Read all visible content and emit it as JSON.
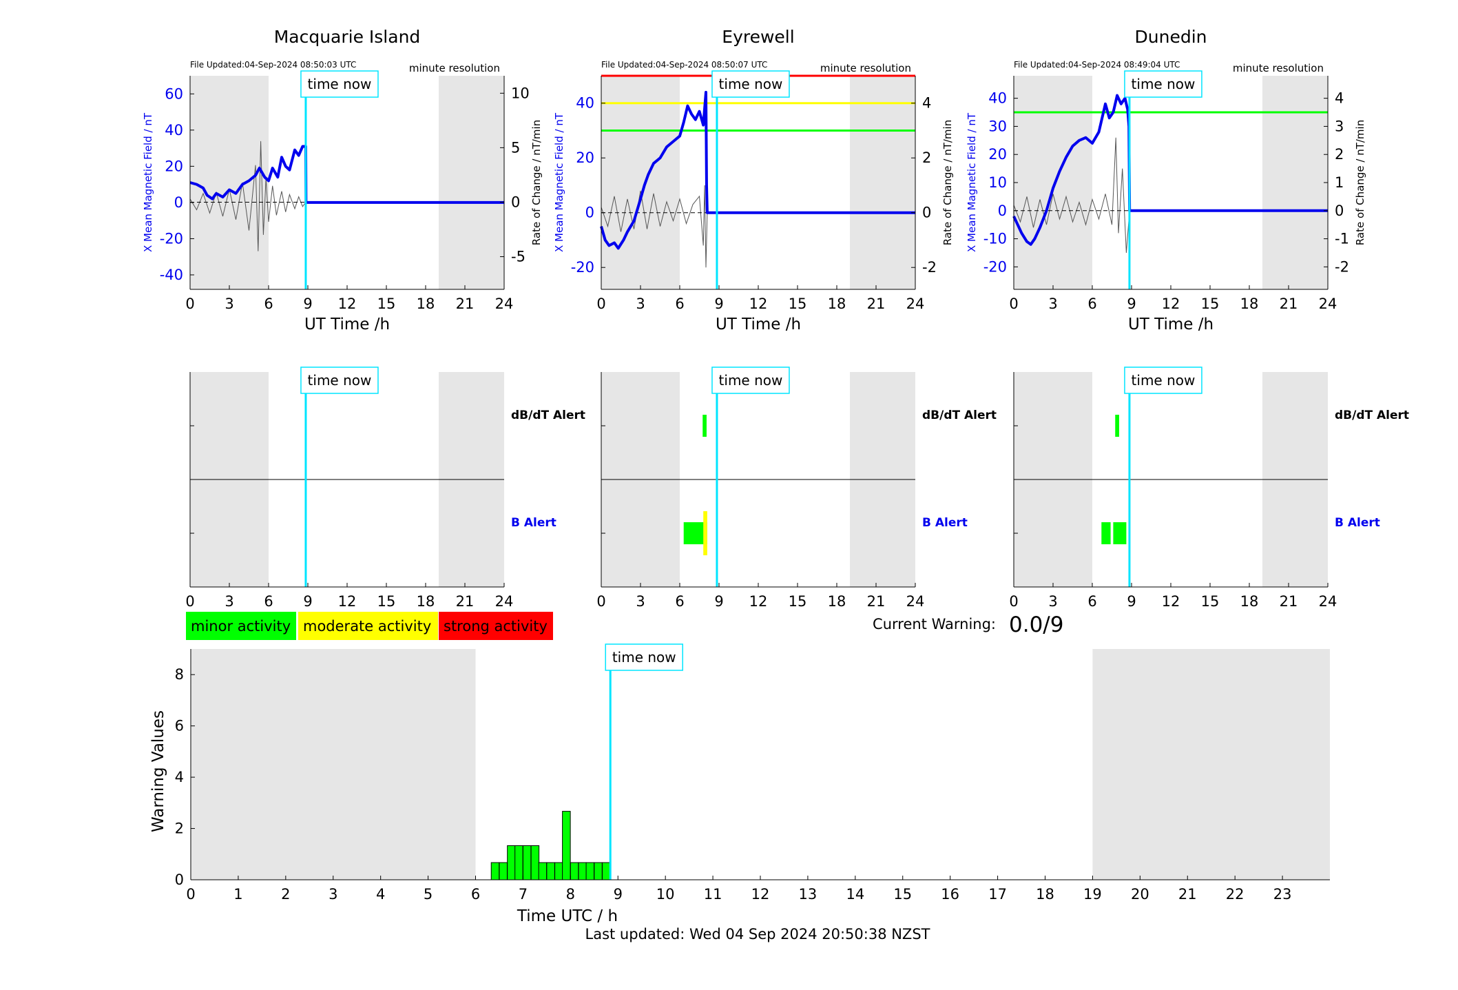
{
  "colors": {
    "bfield": "#0000ee",
    "rate": "#555555",
    "time_now": "#00e5ff",
    "night_shade": "#e6e6e6",
    "minor": "#00ff00",
    "moderate": "#ffff00",
    "strong": "#ff0000",
    "axis": "#000000"
  },
  "time_now_label": "time now",
  "time_now_ut": 8.84,
  "night_shading_ut": [
    [
      0,
      6
    ],
    [
      19,
      24
    ]
  ],
  "x_axis_ticks": [
    "0",
    "3",
    "6",
    "9",
    "12",
    "15",
    "18",
    "21",
    "24"
  ],
  "x_axis_label": "UT Time /h",
  "resolution_label": "minute resolution",
  "left_axis_label": "X Mean Magnetic Field / nT",
  "right_axis_label": "Rate of Change / nT/min",
  "alert_labels": {
    "dbdt": "dB/dT Alert",
    "b": "B Alert"
  },
  "legend": [
    {
      "label": "minor activity",
      "color": "#00ff00"
    },
    {
      "label": "moderate activity",
      "color": "#ffff00"
    },
    {
      "label": "strong activity",
      "color": "#ff0000"
    }
  ],
  "current_warning": {
    "label": "Current Warning:",
    "value": "0.0/9"
  },
  "last_updated": "Last updated: Wed 04 Sep 2024 20:50:38 NZST",
  "stations": [
    {
      "name": "Macquarie Island",
      "file_updated": "File Updated:04-Sep-2024 08:50:03 UTC"
    },
    {
      "name": "Eyrewell",
      "file_updated": "File Updated:04-Sep-2024 08:50:07 UTC"
    },
    {
      "name": "Dunedin",
      "file_updated": "File Updated:04-Sep-2024 08:49:04 UTC"
    }
  ],
  "chart_data": [
    {
      "type": "line",
      "station": "Macquarie Island",
      "xlabel": "UT Time /h",
      "ylabel": "X Mean Magnetic Field / nT",
      "y2label": "Rate of Change / nT/min",
      "xlim": [
        0,
        24
      ],
      "ylim": [
        -48,
        70
      ],
      "y2lim": [
        -8,
        11.6
      ],
      "yticks": [
        -40,
        -20,
        0,
        20,
        40,
        60
      ],
      "y2ticks": [
        -5,
        0,
        5,
        10
      ],
      "thresholds": [],
      "series": [
        {
          "name": "X Mean Magnetic Field",
          "x": [
            0,
            0.5,
            1,
            1.3,
            1.7,
            2,
            2.5,
            3,
            3.5,
            4,
            4.5,
            5,
            5.3,
            5.7,
            6,
            6.3,
            6.7,
            7,
            7.3,
            7.6,
            8,
            8.3,
            8.6,
            8.84,
            8.86,
            24
          ],
          "y": [
            11,
            10,
            8,
            4,
            2,
            5,
            3,
            7,
            5,
            10,
            12,
            15,
            19,
            14,
            12,
            19,
            14,
            25,
            20,
            18,
            29,
            26,
            31,
            31,
            0,
            0
          ]
        },
        {
          "name": "Rate of Change",
          "x": [
            0,
            0.5,
            1,
            1.5,
            2,
            2.5,
            3,
            3.5,
            4,
            4.5,
            5,
            5.2,
            5.4,
            5.6,
            5.8,
            6,
            6.3,
            6.6,
            7,
            7.3,
            7.6,
            8,
            8.3,
            8.6,
            8.84,
            24
          ],
          "y": [
            0.3,
            -0.7,
            0.8,
            -1.0,
            0.9,
            -1.3,
            1.2,
            -1.6,
            1.8,
            -2.6,
            3.4,
            -4.5,
            5.6,
            -3.0,
            2.2,
            -1.8,
            1.5,
            -1.2,
            1.0,
            -0.9,
            0.7,
            -0.6,
            0.5,
            -0.4,
            0,
            0
          ]
        }
      ]
    },
    {
      "type": "line",
      "station": "Eyrewell",
      "xlabel": "UT Time /h",
      "ylabel": "X Mean Magnetic Field / nT",
      "y2label": "Rate of Change / nT/min",
      "xlim": [
        0,
        24
      ],
      "ylim": [
        -28,
        50
      ],
      "y2lim": [
        -2.8,
        5.0
      ],
      "yticks": [
        -20,
        0,
        20,
        40
      ],
      "y2ticks": [
        -2,
        0,
        2,
        4
      ],
      "thresholds": [
        {
          "y": 50,
          "color": "#ff0000"
        },
        {
          "y": 40,
          "color": "#ffff00"
        },
        {
          "y": 30,
          "color": "#00ff00"
        }
      ],
      "series": [
        {
          "name": "X Mean Magnetic Field",
          "x": [
            0,
            0.3,
            0.6,
            1,
            1.3,
            1.7,
            2,
            2.5,
            3,
            3.3,
            3.6,
            4,
            4.5,
            5,
            5.5,
            6,
            6.3,
            6.6,
            6.9,
            7.2,
            7.5,
            7.8,
            8.0,
            8.05,
            8.1,
            24
          ],
          "y": [
            -5,
            -10,
            -12,
            -11,
            -13,
            -10,
            -7,
            -3,
            5,
            10,
            14,
            18,
            20,
            24,
            26,
            28,
            33,
            39,
            36,
            34,
            37,
            32,
            44,
            10,
            0,
            0
          ]
        },
        {
          "name": "Rate of Change",
          "x": [
            0,
            0.5,
            1,
            1.5,
            2,
            2.5,
            3,
            3.5,
            4,
            4.5,
            5,
            5.5,
            6,
            6.5,
            7,
            7.5,
            7.8,
            7.9,
            8.0,
            8.1,
            24
          ],
          "y": [
            0.2,
            -0.5,
            0.6,
            -0.7,
            0.5,
            -0.6,
            0.8,
            -0.6,
            0.7,
            -0.5,
            0.4,
            -0.3,
            0.5,
            -0.4,
            0.3,
            0.6,
            -1.2,
            1.0,
            -2.0,
            0,
            0
          ]
        }
      ]
    },
    {
      "type": "line",
      "station": "Dunedin",
      "xlabel": "UT Time /h",
      "ylabel": "X Mean Magnetic Field / nT",
      "y2label": "Rate of Change / nT/min",
      "xlim": [
        0,
        24
      ],
      "ylim": [
        -28,
        48
      ],
      "y2lim": [
        -2.8,
        4.8
      ],
      "yticks": [
        -20,
        -10,
        0,
        10,
        20,
        30,
        40
      ],
      "y2ticks": [
        -2,
        -1,
        0,
        1,
        2,
        3,
        4
      ],
      "thresholds": [
        {
          "y": 35,
          "color": "#00ff00"
        }
      ],
      "series": [
        {
          "name": "X Mean Magnetic Field",
          "x": [
            0,
            0.3,
            0.6,
            1,
            1.3,
            1.6,
            2,
            2.5,
            3,
            3.5,
            4,
            4.5,
            5,
            5.5,
            6,
            6.5,
            7,
            7.3,
            7.6,
            7.9,
            8.2,
            8.5,
            8.7,
            8.8,
            8.85,
            24
          ],
          "y": [
            -2,
            -5,
            -8,
            -11,
            -12,
            -10,
            -6,
            0,
            8,
            14,
            19,
            23,
            25,
            26,
            24,
            28,
            38,
            33,
            35,
            41,
            38,
            40,
            36,
            30,
            0,
            0
          ]
        },
        {
          "name": "Rate of Change",
          "x": [
            0,
            0.5,
            1,
            1.5,
            2,
            2.5,
            3,
            3.5,
            4,
            4.5,
            5,
            5.5,
            6,
            6.5,
            7,
            7.5,
            7.8,
            8,
            8.3,
            8.6,
            8.85,
            24
          ],
          "y": [
            0.2,
            -0.4,
            0.5,
            -0.6,
            0.4,
            -0.5,
            0.6,
            -0.3,
            0.5,
            -0.4,
            0.3,
            -0.5,
            0.4,
            -0.3,
            0.6,
            -0.5,
            2.6,
            -0.8,
            1.5,
            -1.5,
            0,
            0
          ]
        }
      ]
    },
    {
      "type": "bar",
      "chart_role": "alerts",
      "station": "Macquarie Island",
      "xlim": [
        0,
        24
      ],
      "dbdt_alerts": [],
      "b_alerts": []
    },
    {
      "type": "bar",
      "chart_role": "alerts",
      "station": "Eyrewell",
      "xlim": [
        0,
        24
      ],
      "dbdt_alerts": [
        {
          "start": 7.75,
          "end": 8.05,
          "level": "minor"
        }
      ],
      "b_alerts": [
        {
          "start": 6.3,
          "end": 8.1,
          "level": "minor"
        },
        {
          "start": 7.8,
          "end": 8.1,
          "level": "moderate"
        }
      ]
    },
    {
      "type": "bar",
      "chart_role": "alerts",
      "station": "Dunedin",
      "xlim": [
        0,
        24
      ],
      "dbdt_alerts": [
        {
          "start": 7.75,
          "end": 8.05,
          "level": "minor"
        }
      ],
      "b_alerts": [
        {
          "start": 6.7,
          "end": 7.4,
          "level": "minor"
        },
        {
          "start": 7.6,
          "end": 8.6,
          "level": "minor"
        }
      ]
    },
    {
      "type": "bar",
      "title": "",
      "xlabel": "Time UTC / h",
      "ylabel": "Warning Values",
      "xlim": [
        0,
        24
      ],
      "ylim": [
        0,
        9
      ],
      "xticks": [
        0,
        1,
        2,
        3,
        4,
        5,
        6,
        7,
        8,
        9,
        10,
        11,
        12,
        13,
        14,
        15,
        16,
        17,
        18,
        19,
        20,
        21,
        22,
        23
      ],
      "yticks": [
        0,
        2,
        4,
        6,
        8
      ],
      "bar_width_h": 0.1667,
      "bar_start_h": [
        6.33,
        6.5,
        6.67,
        6.83,
        7.0,
        7.17,
        7.33,
        7.5,
        7.67,
        7.83,
        8.0,
        8.17,
        8.33,
        8.5,
        8.67
      ],
      "values": [
        0.67,
        0.67,
        1.33,
        1.33,
        1.33,
        1.33,
        0.67,
        0.67,
        0.67,
        2.67,
        0.67,
        0.67,
        0.67,
        0.67,
        0.67
      ]
    }
  ]
}
